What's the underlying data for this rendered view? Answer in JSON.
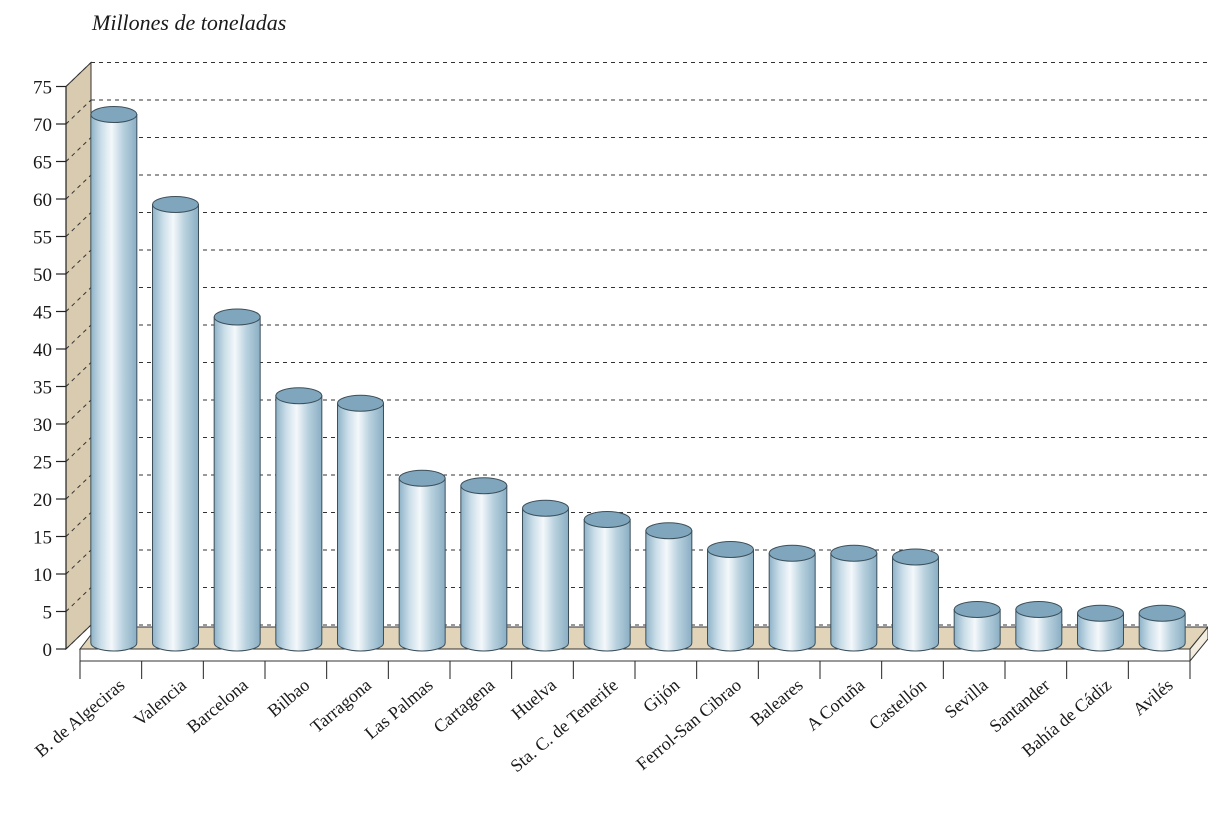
{
  "chart_data": {
    "type": "bar",
    "style": "3d-cylinder",
    "unit_label": "Millones de toneladas",
    "categories": [
      "B. de Algeciras",
      "Valencia",
      "Barcelona",
      "Bilbao",
      "Tarragona",
      "Las Palmas",
      "Cartagena",
      "Huelva",
      "Sta. C. de Tenerife",
      "Gijón",
      "Ferrol-San Cibrao",
      "Baleares",
      "A Coruña",
      "Castellón",
      "Sevilla",
      "Santander",
      "Bahía de Cádiz",
      "Avilés"
    ],
    "values": [
      71,
      59,
      44,
      33.5,
      32.5,
      22.5,
      21.5,
      18.5,
      17,
      15.5,
      13,
      12.5,
      12.5,
      12,
      5,
      5,
      4.5,
      4.5
    ],
    "ylim": [
      0,
      75
    ],
    "yticks": [
      0,
      5,
      10,
      15,
      20,
      25,
      30,
      35,
      40,
      45,
      50,
      55,
      60,
      65,
      70,
      75
    ],
    "grid": "dashed",
    "colors": {
      "bar_top": "#7fa6bc",
      "bar_side": "#a9c6d6",
      "bar_highlight": "#f2f7fa",
      "wall": "#d9cbb0",
      "floor": "#e1d4b8",
      "grid": "#333333"
    }
  }
}
